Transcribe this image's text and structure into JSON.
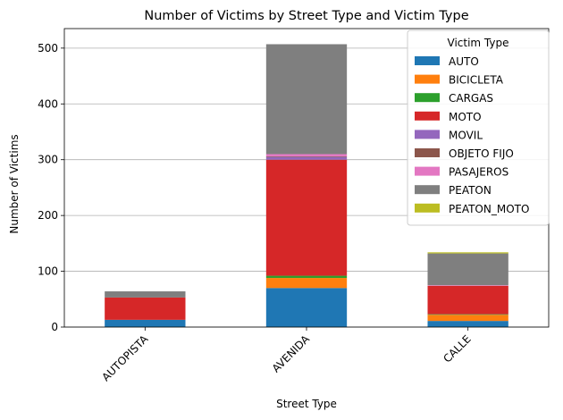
{
  "chart_data": {
    "type": "bar",
    "stacked": true,
    "title": "Number of Victims by Street Type and Victim Type",
    "xlabel": "Street Type",
    "ylabel": "Number of Victims",
    "categories": [
      "AUTOPISTA",
      "AVENIDA",
      "CALLE"
    ],
    "ylim": [
      0,
      535
    ],
    "yticks": [
      0,
      100,
      200,
      300,
      400,
      500
    ],
    "grid": "y",
    "legend": {
      "title": "Victim Type",
      "placement": "top-right"
    },
    "series": [
      {
        "name": "AUTO",
        "color": "#1f77b4",
        "values": [
          13,
          70,
          11
        ]
      },
      {
        "name": "BICICLETA",
        "color": "#ff7f0e",
        "values": [
          0,
          18,
          11
        ]
      },
      {
        "name": "CARGAS",
        "color": "#2ca02c",
        "values": [
          0,
          4,
          1
        ]
      },
      {
        "name": "MOTO",
        "color": "#d62728",
        "values": [
          40,
          208,
          51
        ]
      },
      {
        "name": "MOVIL",
        "color": "#9467bd",
        "values": [
          0,
          5,
          0
        ]
      },
      {
        "name": "OBJETO FIJO",
        "color": "#8c564b",
        "values": [
          0,
          1,
          0
        ]
      },
      {
        "name": "PASAJEROS",
        "color": "#e377c2",
        "values": [
          0,
          4,
          1
        ]
      },
      {
        "name": "PEATON",
        "color": "#7f7f7f",
        "values": [
          11,
          197,
          57
        ]
      },
      {
        "name": "PEATON_MOTO",
        "color": "#bcbd22",
        "values": [
          0,
          0,
          2
        ]
      }
    ]
  }
}
